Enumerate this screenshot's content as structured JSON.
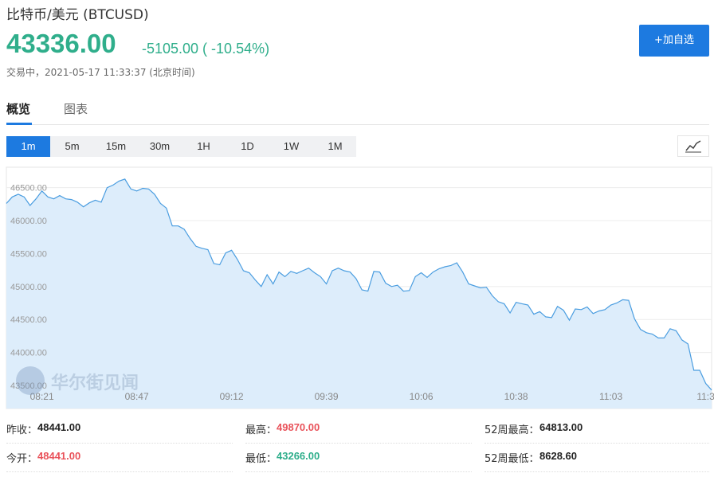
{
  "header": {
    "title": "比特币/美元 (BTCUSD)",
    "price": "43336.00",
    "change": "-5105.00 ( -10.54%)",
    "status": "交易中，2021-05-17 11:33:37 (北京时间)",
    "button": "+加自选"
  },
  "tabs": [
    "概览",
    "图表"
  ],
  "intervals": [
    "1m",
    "5m",
    "15m",
    "30m",
    "1H",
    "1D",
    "1W",
    "1M"
  ],
  "chart_data": {
    "type": "area",
    "color": "#4a9de0",
    "fill": "#ddedfb",
    "grid": true,
    "watermark": "华尔街见闻",
    "categories": [
      null,
      null,
      null,
      null,
      null,
      null,
      "08:21",
      null,
      null,
      null,
      null,
      null,
      null,
      null,
      null,
      null,
      null,
      null,
      null,
      null,
      null,
      null,
      "08:47",
      null,
      null,
      null,
      null,
      null,
      null,
      null,
      null,
      null,
      null,
      null,
      null,
      null,
      null,
      null,
      "09:12",
      null,
      null,
      null,
      null,
      null,
      null,
      null,
      null,
      null,
      null,
      null,
      null,
      null,
      null,
      null,
      "09:39",
      null,
      null,
      null,
      null,
      null,
      null,
      null,
      null,
      null,
      null,
      null,
      null,
      null,
      null,
      null,
      "10:06",
      null,
      null,
      null,
      null,
      null,
      null,
      null,
      null,
      null,
      null,
      null,
      null,
      null,
      null,
      null,
      "10:38",
      null,
      null,
      null,
      null,
      null,
      null,
      null,
      null,
      null,
      null,
      null,
      null,
      null,
      null,
      null,
      "11:03",
      null,
      null,
      null,
      null,
      null,
      null,
      null,
      null,
      null,
      null,
      null,
      null,
      null,
      null,
      null,
      "11:3",
      null
    ],
    "values": [
      46260,
      46360,
      46400,
      46360,
      46230,
      46330,
      46450,
      46360,
      46330,
      46380,
      46330,
      46320,
      46280,
      46210,
      46270,
      46310,
      46280,
      46500,
      46540,
      46600,
      46630,
      46480,
      46450,
      46490,
      46480,
      46400,
      46260,
      46190,
      45920,
      45920,
      45870,
      45730,
      45610,
      45580,
      45560,
      45350,
      45330,
      45510,
      45550,
      45410,
      45240,
      45210,
      45100,
      45000,
      45180,
      45040,
      45220,
      45150,
      45230,
      45200,
      45240,
      45280,
      45210,
      45150,
      45040,
      45240,
      45280,
      45240,
      45220,
      45120,
      44950,
      44930,
      45230,
      45220,
      45050,
      45000,
      45020,
      44930,
      44940,
      45150,
      45210,
      45140,
      45220,
      45270,
      45300,
      45320,
      45360,
      45220,
      45040,
      45010,
      44980,
      44990,
      44860,
      44770,
      44740,
      44600,
      44760,
      44740,
      44720,
      44580,
      44620,
      44540,
      44530,
      44700,
      44640,
      44490,
      44660,
      44650,
      44690,
      44590,
      44630,
      44650,
      44720,
      44750,
      44800,
      44790,
      44510,
      44350,
      44300,
      44280,
      44220,
      44220,
      44360,
      44330,
      44190,
      44130,
      43730,
      43730,
      43530,
      43430
    ],
    "ylim": [
      43150,
      46810
    ],
    "yticks": [
      {
        "value": 43500,
        "label": "43500.00"
      },
      {
        "value": 44000,
        "label": "44000.00"
      },
      {
        "value": 44500,
        "label": "44500.00"
      },
      {
        "value": 45000,
        "label": "45000.00"
      },
      {
        "value": 45500,
        "label": "45500.00"
      },
      {
        "value": 46000,
        "label": "46000.00"
      },
      {
        "value": 46500,
        "label": "46500.00"
      }
    ]
  },
  "stats": [
    [
      {
        "label": "昨收：",
        "value": "48441.00",
        "color": "#222222"
      },
      {
        "label": "最高：",
        "value": "49870.00",
        "color": "#e9525a"
      },
      {
        "label": "52周最高：",
        "value": "64813.00",
        "color": "#222222"
      }
    ],
    [
      {
        "label": "今开：",
        "value": "48441.00",
        "color": "#e9525a"
      },
      {
        "label": "最低：",
        "value": "43266.00",
        "color": "#2fae8b"
      },
      {
        "label": "52周最低：",
        "value": "8628.60",
        "color": "#222222"
      }
    ]
  ]
}
